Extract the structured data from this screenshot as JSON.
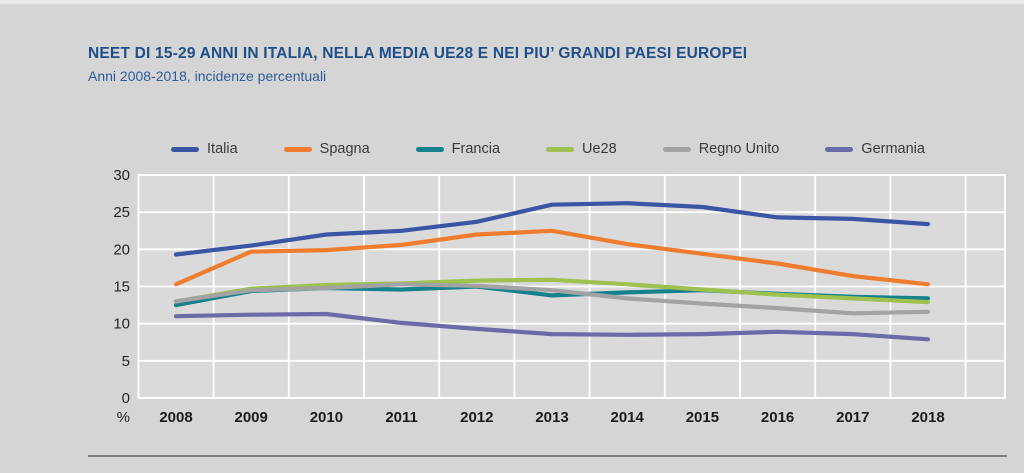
{
  "chart_data": {
    "type": "line",
    "title": "NEET DI 15-29 ANNI IN ITALIA, NELLA MEDIA UE28 E NEI PIU’ GRANDI PAESI EUROPEI",
    "subtitle": "Anni 2008-2018, incidenze percentuali",
    "xlabel": "",
    "ylabel": "%",
    "unit_label": "%",
    "x": [
      2008,
      2009,
      2010,
      2011,
      2012,
      2013,
      2014,
      2015,
      2016,
      2017,
      2018
    ],
    "ylim": [
      0,
      30
    ],
    "ytick_step": 5,
    "grid": true,
    "legend_position": "top",
    "series": [
      {
        "name": "Italia",
        "color": "#3b55a5",
        "values": [
          19.3,
          20.5,
          22.0,
          22.5,
          23.7,
          26.0,
          26.2,
          25.7,
          24.3,
          24.1,
          23.4
        ]
      },
      {
        "name": "Spagna",
        "color": "#f07d2f",
        "values": [
          15.3,
          19.7,
          19.9,
          20.6,
          22.0,
          22.5,
          20.7,
          19.4,
          18.1,
          16.4,
          15.3
        ]
      },
      {
        "name": "Francia",
        "color": "#16808c",
        "values": [
          12.5,
          14.4,
          14.8,
          14.6,
          15.0,
          13.8,
          14.2,
          14.5,
          14.0,
          13.6,
          13.4
        ]
      },
      {
        "name": "Ue28",
        "color": "#9ec14f",
        "values": [
          13.0,
          14.7,
          15.2,
          15.4,
          15.8,
          15.9,
          15.3,
          14.6,
          13.9,
          13.4,
          12.9
        ]
      },
      {
        "name": "Regno Unito",
        "color": "#a3a3a3",
        "values": [
          13.0,
          14.5,
          14.8,
          15.3,
          15.1,
          14.5,
          13.4,
          12.7,
          12.1,
          11.4,
          11.6
        ]
      },
      {
        "name": "Germania",
        "color": "#6b6ba8",
        "values": [
          11.0,
          11.2,
          11.3,
          10.1,
          9.3,
          8.6,
          8.5,
          8.6,
          8.9,
          8.6,
          7.9
        ]
      }
    ]
  },
  "colors": {
    "page_bg": "#d5d5d5",
    "plot_bg": "#dadada",
    "gridline": "#ffffff",
    "axis_text": "#262626",
    "title_text": "#1f4e8c",
    "subtitle_text": "#2d5c9c",
    "divider": "#7f7f7f"
  }
}
